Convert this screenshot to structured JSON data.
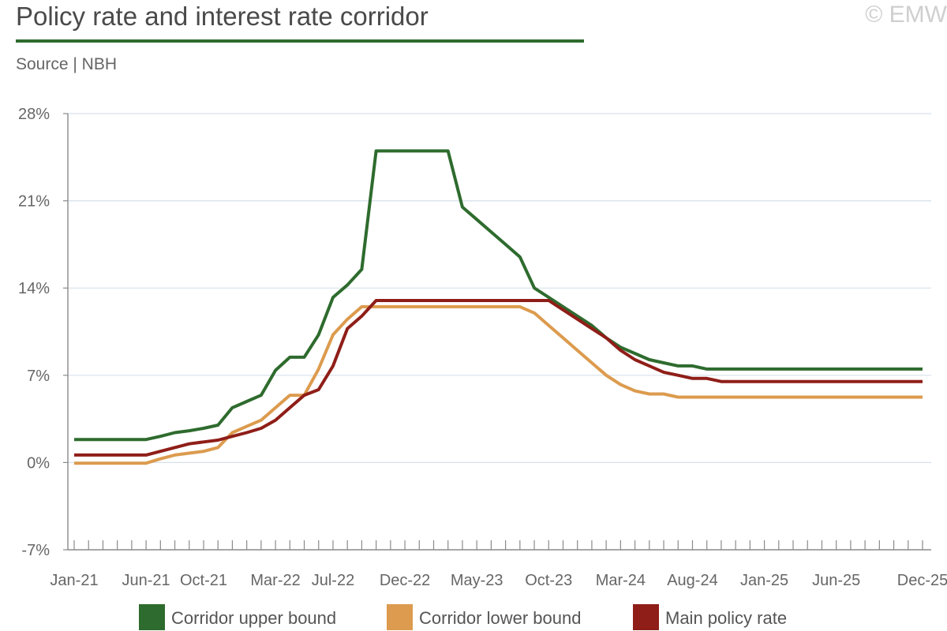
{
  "header": {
    "title": "Policy rate and interest rate corridor",
    "source": "Source | NBH",
    "copyright": "© EMW"
  },
  "chart_data": {
    "type": "line",
    "title": "Policy rate and interest rate corridor",
    "xlabel": "",
    "ylabel": "",
    "ylim": [
      -7,
      28
    ],
    "y_ticks": [
      -7,
      0,
      7,
      14,
      21,
      28
    ],
    "y_tick_labels": [
      "-7%",
      "0%",
      "7%",
      "14%",
      "21%",
      "28%"
    ],
    "x_tick_labels": [
      "Jan-21",
      "Jun-21",
      "Oct-21",
      "Mar-22",
      "Jul-22",
      "Dec-22",
      "May-23",
      "Oct-23",
      "Mar-24",
      "Aug-24",
      "Jan-25",
      "Jun-25",
      "Dec-25"
    ],
    "x_tick_indices": [
      0,
      5,
      9,
      14,
      18,
      23,
      28,
      33,
      38,
      43,
      48,
      53,
      59
    ],
    "grid": true,
    "legend_position": "bottom",
    "series": [
      {
        "name": "Corridor upper bound",
        "color": "#2e6b2e",
        "values": [
          1.85,
          1.85,
          1.85,
          1.85,
          1.85,
          1.85,
          2.1,
          2.4,
          2.55,
          2.75,
          3.0,
          4.4,
          4.9,
          5.4,
          7.4,
          8.45,
          8.45,
          10.25,
          13.25,
          14.25,
          15.5,
          25.0,
          25.0,
          25.0,
          25.0,
          25.0,
          25.0,
          20.5,
          19.5,
          18.5,
          17.5,
          16.5,
          14.0,
          13.25,
          12.5,
          11.75,
          11.0,
          10.0,
          9.25,
          8.75,
          8.25,
          8.0,
          7.75,
          7.75,
          7.5,
          7.5,
          7.5,
          7.5,
          7.5,
          7.5,
          7.5,
          7.5,
          7.5,
          7.5,
          7.5,
          7.5,
          7.5,
          7.5,
          7.5,
          7.5
        ]
      },
      {
        "name": "Corridor lower bound",
        "color": "#dc9b4e",
        "values": [
          -0.05,
          -0.05,
          -0.05,
          -0.05,
          -0.05,
          -0.05,
          0.3,
          0.6,
          0.75,
          0.9,
          1.2,
          2.4,
          2.9,
          3.4,
          4.4,
          5.4,
          5.4,
          7.5,
          10.25,
          11.5,
          12.5,
          12.5,
          12.5,
          12.5,
          12.5,
          12.5,
          12.5,
          12.5,
          12.5,
          12.5,
          12.5,
          12.5,
          12.0,
          11.0,
          10.0,
          9.0,
          8.0,
          7.0,
          6.25,
          5.75,
          5.5,
          5.5,
          5.25,
          5.25,
          5.25,
          5.25,
          5.25,
          5.25,
          5.25,
          5.25,
          5.25,
          5.25,
          5.25,
          5.25,
          5.25,
          5.25,
          5.25,
          5.25,
          5.25,
          5.25
        ]
      },
      {
        "name": "Main policy rate",
        "color": "#8f1e18",
        "values": [
          0.6,
          0.6,
          0.6,
          0.6,
          0.6,
          0.6,
          0.9,
          1.2,
          1.5,
          1.65,
          1.8,
          2.1,
          2.4,
          2.75,
          3.4,
          4.4,
          5.4,
          5.85,
          7.75,
          10.75,
          11.75,
          13.0,
          13.0,
          13.0,
          13.0,
          13.0,
          13.0,
          13.0,
          13.0,
          13.0,
          13.0,
          13.0,
          13.0,
          13.0,
          12.25,
          11.5,
          10.75,
          10.0,
          9.0,
          8.25,
          7.75,
          7.25,
          7.0,
          6.75,
          6.75,
          6.5,
          6.5,
          6.5,
          6.5,
          6.5,
          6.5,
          6.5,
          6.5,
          6.5,
          6.5,
          6.5,
          6.5,
          6.5,
          6.5,
          6.5
        ]
      }
    ]
  }
}
